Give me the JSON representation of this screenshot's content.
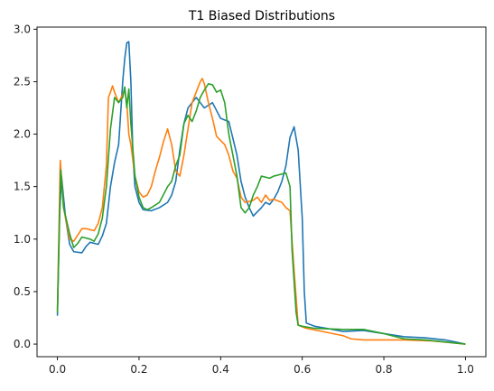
{
  "chart_data": {
    "type": "line",
    "title": "T1 Biased Distributions",
    "xlabel": "",
    "ylabel": "",
    "xlim": [
      -0.05,
      1.05
    ],
    "ylim": [
      -0.12,
      3.02
    ],
    "grid": false,
    "xticks": [
      0.0,
      0.2,
      0.4,
      0.6,
      0.8,
      1.0
    ],
    "xtick_labels": [
      "0.0",
      "0.2",
      "0.4",
      "0.6",
      "0.8",
      "1.0"
    ],
    "yticks": [
      0.0,
      0.5,
      1.0,
      1.5,
      2.0,
      2.5,
      3.0
    ],
    "ytick_labels": [
      "0.0",
      "0.5",
      "1.0",
      "1.5",
      "2.0",
      "2.5",
      "3.0"
    ],
    "series": [
      {
        "color": "#1f77b4",
        "points": [
          [
            0.0,
            0.27
          ],
          [
            0.005,
            1.2
          ],
          [
            0.01,
            1.6
          ],
          [
            0.02,
            1.2
          ],
          [
            0.03,
            0.95
          ],
          [
            0.04,
            0.88
          ],
          [
            0.06,
            0.87
          ],
          [
            0.07,
            0.93
          ],
          [
            0.08,
            0.97
          ],
          [
            0.1,
            0.95
          ],
          [
            0.11,
            1.03
          ],
          [
            0.12,
            1.15
          ],
          [
            0.13,
            1.5
          ],
          [
            0.14,
            1.73
          ],
          [
            0.15,
            1.9
          ],
          [
            0.16,
            2.5
          ],
          [
            0.165,
            2.72
          ],
          [
            0.17,
            2.87
          ],
          [
            0.175,
            2.88
          ],
          [
            0.18,
            2.5
          ],
          [
            0.185,
            1.8
          ],
          [
            0.19,
            1.5
          ],
          [
            0.2,
            1.35
          ],
          [
            0.21,
            1.28
          ],
          [
            0.23,
            1.27
          ],
          [
            0.25,
            1.3
          ],
          [
            0.27,
            1.35
          ],
          [
            0.28,
            1.42
          ],
          [
            0.29,
            1.55
          ],
          [
            0.3,
            1.85
          ],
          [
            0.31,
            2.1
          ],
          [
            0.32,
            2.25
          ],
          [
            0.33,
            2.3
          ],
          [
            0.34,
            2.35
          ],
          [
            0.35,
            2.3
          ],
          [
            0.36,
            2.25
          ],
          [
            0.38,
            2.3
          ],
          [
            0.4,
            2.15
          ],
          [
            0.42,
            2.12
          ],
          [
            0.44,
            1.8
          ],
          [
            0.45,
            1.55
          ],
          [
            0.46,
            1.4
          ],
          [
            0.47,
            1.3
          ],
          [
            0.48,
            1.22
          ],
          [
            0.5,
            1.3
          ],
          [
            0.51,
            1.35
          ],
          [
            0.52,
            1.33
          ],
          [
            0.53,
            1.38
          ],
          [
            0.54,
            1.45
          ],
          [
            0.55,
            1.55
          ],
          [
            0.56,
            1.7
          ],
          [
            0.57,
            1.97
          ],
          [
            0.58,
            2.07
          ],
          [
            0.59,
            1.85
          ],
          [
            0.6,
            1.2
          ],
          [
            0.605,
            0.5
          ],
          [
            0.61,
            0.2
          ],
          [
            0.63,
            0.17
          ],
          [
            0.66,
            0.15
          ],
          [
            0.7,
            0.12
          ],
          [
            0.75,
            0.13
          ],
          [
            0.8,
            0.1
          ],
          [
            0.85,
            0.07
          ],
          [
            0.9,
            0.06
          ],
          [
            0.95,
            0.04
          ],
          [
            1.0,
            0.0
          ]
        ]
      },
      {
        "color": "#ff7f0e",
        "points": [
          [
            0.0,
            0.33
          ],
          [
            0.007,
            1.75
          ],
          [
            0.015,
            1.3
          ],
          [
            0.03,
            1.0
          ],
          [
            0.04,
            0.98
          ],
          [
            0.06,
            1.1
          ],
          [
            0.07,
            1.1
          ],
          [
            0.09,
            1.08
          ],
          [
            0.1,
            1.15
          ],
          [
            0.11,
            1.3
          ],
          [
            0.12,
            1.7
          ],
          [
            0.125,
            2.35
          ],
          [
            0.13,
            2.4
          ],
          [
            0.135,
            2.46
          ],
          [
            0.14,
            2.4
          ],
          [
            0.15,
            2.3
          ],
          [
            0.16,
            2.38
          ],
          [
            0.165,
            2.42
          ],
          [
            0.17,
            2.3
          ],
          [
            0.175,
            2.0
          ],
          [
            0.18,
            1.9
          ],
          [
            0.19,
            1.6
          ],
          [
            0.2,
            1.45
          ],
          [
            0.21,
            1.4
          ],
          [
            0.22,
            1.42
          ],
          [
            0.23,
            1.5
          ],
          [
            0.24,
            1.65
          ],
          [
            0.25,
            1.78
          ],
          [
            0.26,
            1.93
          ],
          [
            0.27,
            2.05
          ],
          [
            0.28,
            1.9
          ],
          [
            0.29,
            1.65
          ],
          [
            0.3,
            1.6
          ],
          [
            0.31,
            1.8
          ],
          [
            0.32,
            2.05
          ],
          [
            0.33,
            2.3
          ],
          [
            0.34,
            2.4
          ],
          [
            0.35,
            2.5
          ],
          [
            0.355,
            2.53
          ],
          [
            0.36,
            2.48
          ],
          [
            0.37,
            2.3
          ],
          [
            0.38,
            2.15
          ],
          [
            0.39,
            1.98
          ],
          [
            0.41,
            1.9
          ],
          [
            0.42,
            1.8
          ],
          [
            0.43,
            1.65
          ],
          [
            0.44,
            1.58
          ],
          [
            0.45,
            1.4
          ],
          [
            0.46,
            1.35
          ],
          [
            0.48,
            1.37
          ],
          [
            0.49,
            1.4
          ],
          [
            0.5,
            1.35
          ],
          [
            0.51,
            1.42
          ],
          [
            0.52,
            1.37
          ],
          [
            0.53,
            1.38
          ],
          [
            0.55,
            1.35
          ],
          [
            0.56,
            1.3
          ],
          [
            0.57,
            1.27
          ],
          [
            0.58,
            0.7
          ],
          [
            0.59,
            0.18
          ],
          [
            0.61,
            0.15
          ],
          [
            0.65,
            0.12
          ],
          [
            0.7,
            0.08
          ],
          [
            0.72,
            0.05
          ],
          [
            0.75,
            0.04
          ],
          [
            0.85,
            0.04
          ],
          [
            0.92,
            0.03
          ],
          [
            1.0,
            0.0
          ]
        ]
      },
      {
        "color": "#2ca02c",
        "points": [
          [
            0.0,
            0.3
          ],
          [
            0.008,
            1.66
          ],
          [
            0.015,
            1.3
          ],
          [
            0.03,
            1.05
          ],
          [
            0.04,
            0.92
          ],
          [
            0.05,
            0.96
          ],
          [
            0.06,
            1.02
          ],
          [
            0.08,
            1.0
          ],
          [
            0.09,
            0.98
          ],
          [
            0.1,
            1.05
          ],
          [
            0.11,
            1.2
          ],
          [
            0.12,
            1.5
          ],
          [
            0.13,
            2.05
          ],
          [
            0.14,
            2.35
          ],
          [
            0.15,
            2.3
          ],
          [
            0.16,
            2.35
          ],
          [
            0.165,
            2.45
          ],
          [
            0.17,
            2.25
          ],
          [
            0.175,
            2.43
          ],
          [
            0.18,
            2.1
          ],
          [
            0.19,
            1.6
          ],
          [
            0.2,
            1.4
          ],
          [
            0.21,
            1.3
          ],
          [
            0.22,
            1.28
          ],
          [
            0.23,
            1.3
          ],
          [
            0.25,
            1.35
          ],
          [
            0.27,
            1.5
          ],
          [
            0.28,
            1.55
          ],
          [
            0.29,
            1.7
          ],
          [
            0.3,
            1.8
          ],
          [
            0.31,
            2.1
          ],
          [
            0.32,
            2.18
          ],
          [
            0.33,
            2.12
          ],
          [
            0.34,
            2.22
          ],
          [
            0.35,
            2.35
          ],
          [
            0.36,
            2.42
          ],
          [
            0.37,
            2.48
          ],
          [
            0.38,
            2.47
          ],
          [
            0.39,
            2.4
          ],
          [
            0.4,
            2.42
          ],
          [
            0.41,
            2.3
          ],
          [
            0.42,
            2.0
          ],
          [
            0.43,
            1.8
          ],
          [
            0.44,
            1.6
          ],
          [
            0.45,
            1.3
          ],
          [
            0.46,
            1.25
          ],
          [
            0.47,
            1.3
          ],
          [
            0.48,
            1.42
          ],
          [
            0.49,
            1.5
          ],
          [
            0.5,
            1.6
          ],
          [
            0.52,
            1.58
          ],
          [
            0.53,
            1.6
          ],
          [
            0.55,
            1.62
          ],
          [
            0.56,
            1.63
          ],
          [
            0.57,
            1.5
          ],
          [
            0.575,
            0.9
          ],
          [
            0.585,
            0.3
          ],
          [
            0.59,
            0.18
          ],
          [
            0.6,
            0.17
          ],
          [
            0.63,
            0.15
          ],
          [
            0.7,
            0.14
          ],
          [
            0.75,
            0.14
          ],
          [
            0.8,
            0.1
          ],
          [
            0.85,
            0.05
          ],
          [
            0.9,
            0.04
          ],
          [
            0.95,
            0.02
          ],
          [
            1.0,
            0.0
          ]
        ]
      }
    ]
  }
}
